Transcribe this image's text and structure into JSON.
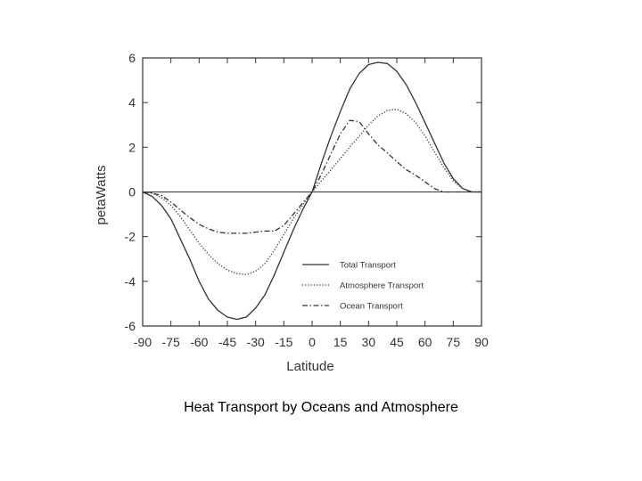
{
  "caption": "Heat Transport by Oceans and Atmosphere",
  "colors": {
    "ink": "#333333",
    "background": "#ffffff"
  },
  "chart_data": {
    "type": "line",
    "title": "",
    "xlabel": "Latitude",
    "ylabel": "petaWatts",
    "xlim": [
      -90,
      90
    ],
    "ylim": [
      -6,
      6
    ],
    "xticks": [
      -90,
      -75,
      -60,
      -45,
      -30,
      -15,
      0,
      15,
      30,
      45,
      60,
      75,
      90
    ],
    "yticks": [
      -6,
      -4,
      -2,
      0,
      2,
      4,
      6
    ],
    "grid": false,
    "legend_position": "bottom-right",
    "x": [
      -90,
      -85,
      -80,
      -75,
      -70,
      -65,
      -60,
      -55,
      -50,
      -45,
      -40,
      -35,
      -30,
      -25,
      -20,
      -15,
      -10,
      -5,
      0,
      5,
      10,
      15,
      20,
      25,
      30,
      35,
      40,
      45,
      50,
      55,
      60,
      65,
      70,
      75,
      80,
      85,
      90
    ],
    "series": [
      {
        "name": "Total Transport",
        "style": "solid",
        "values": [
          0,
          -0.2,
          -0.6,
          -1.2,
          -2.1,
          -3.0,
          -4.0,
          -4.8,
          -5.3,
          -5.6,
          -5.7,
          -5.6,
          -5.2,
          -4.6,
          -3.7,
          -2.7,
          -1.7,
          -0.8,
          0,
          1.3,
          2.5,
          3.6,
          4.6,
          5.3,
          5.7,
          5.8,
          5.75,
          5.4,
          4.8,
          4.0,
          3.1,
          2.2,
          1.3,
          0.6,
          0.15,
          0,
          0
        ]
      },
      {
        "name": "Atmosphere Transport",
        "style": "dotted",
        "values": [
          0,
          -0.05,
          -0.25,
          -0.6,
          -1.1,
          -1.7,
          -2.3,
          -2.8,
          -3.2,
          -3.5,
          -3.65,
          -3.7,
          -3.55,
          -3.2,
          -2.6,
          -1.9,
          -1.2,
          -0.6,
          0,
          0.5,
          1.0,
          1.5,
          2.0,
          2.5,
          3.0,
          3.4,
          3.65,
          3.7,
          3.5,
          3.1,
          2.5,
          1.8,
          1.1,
          0.5,
          0.15,
          0,
          0
        ]
      },
      {
        "name": "Ocean Transport",
        "style": "dashdot",
        "values": [
          0,
          -0.05,
          -0.15,
          -0.45,
          -0.8,
          -1.15,
          -1.45,
          -1.65,
          -1.8,
          -1.85,
          -1.85,
          -1.85,
          -1.8,
          -1.75,
          -1.75,
          -1.5,
          -1.0,
          -0.5,
          0,
          0.8,
          1.7,
          2.6,
          3.2,
          3.15,
          2.6,
          2.1,
          1.75,
          1.35,
          1.0,
          0.75,
          0.45,
          0.15,
          0,
          0,
          0,
          0,
          0
        ]
      }
    ]
  }
}
